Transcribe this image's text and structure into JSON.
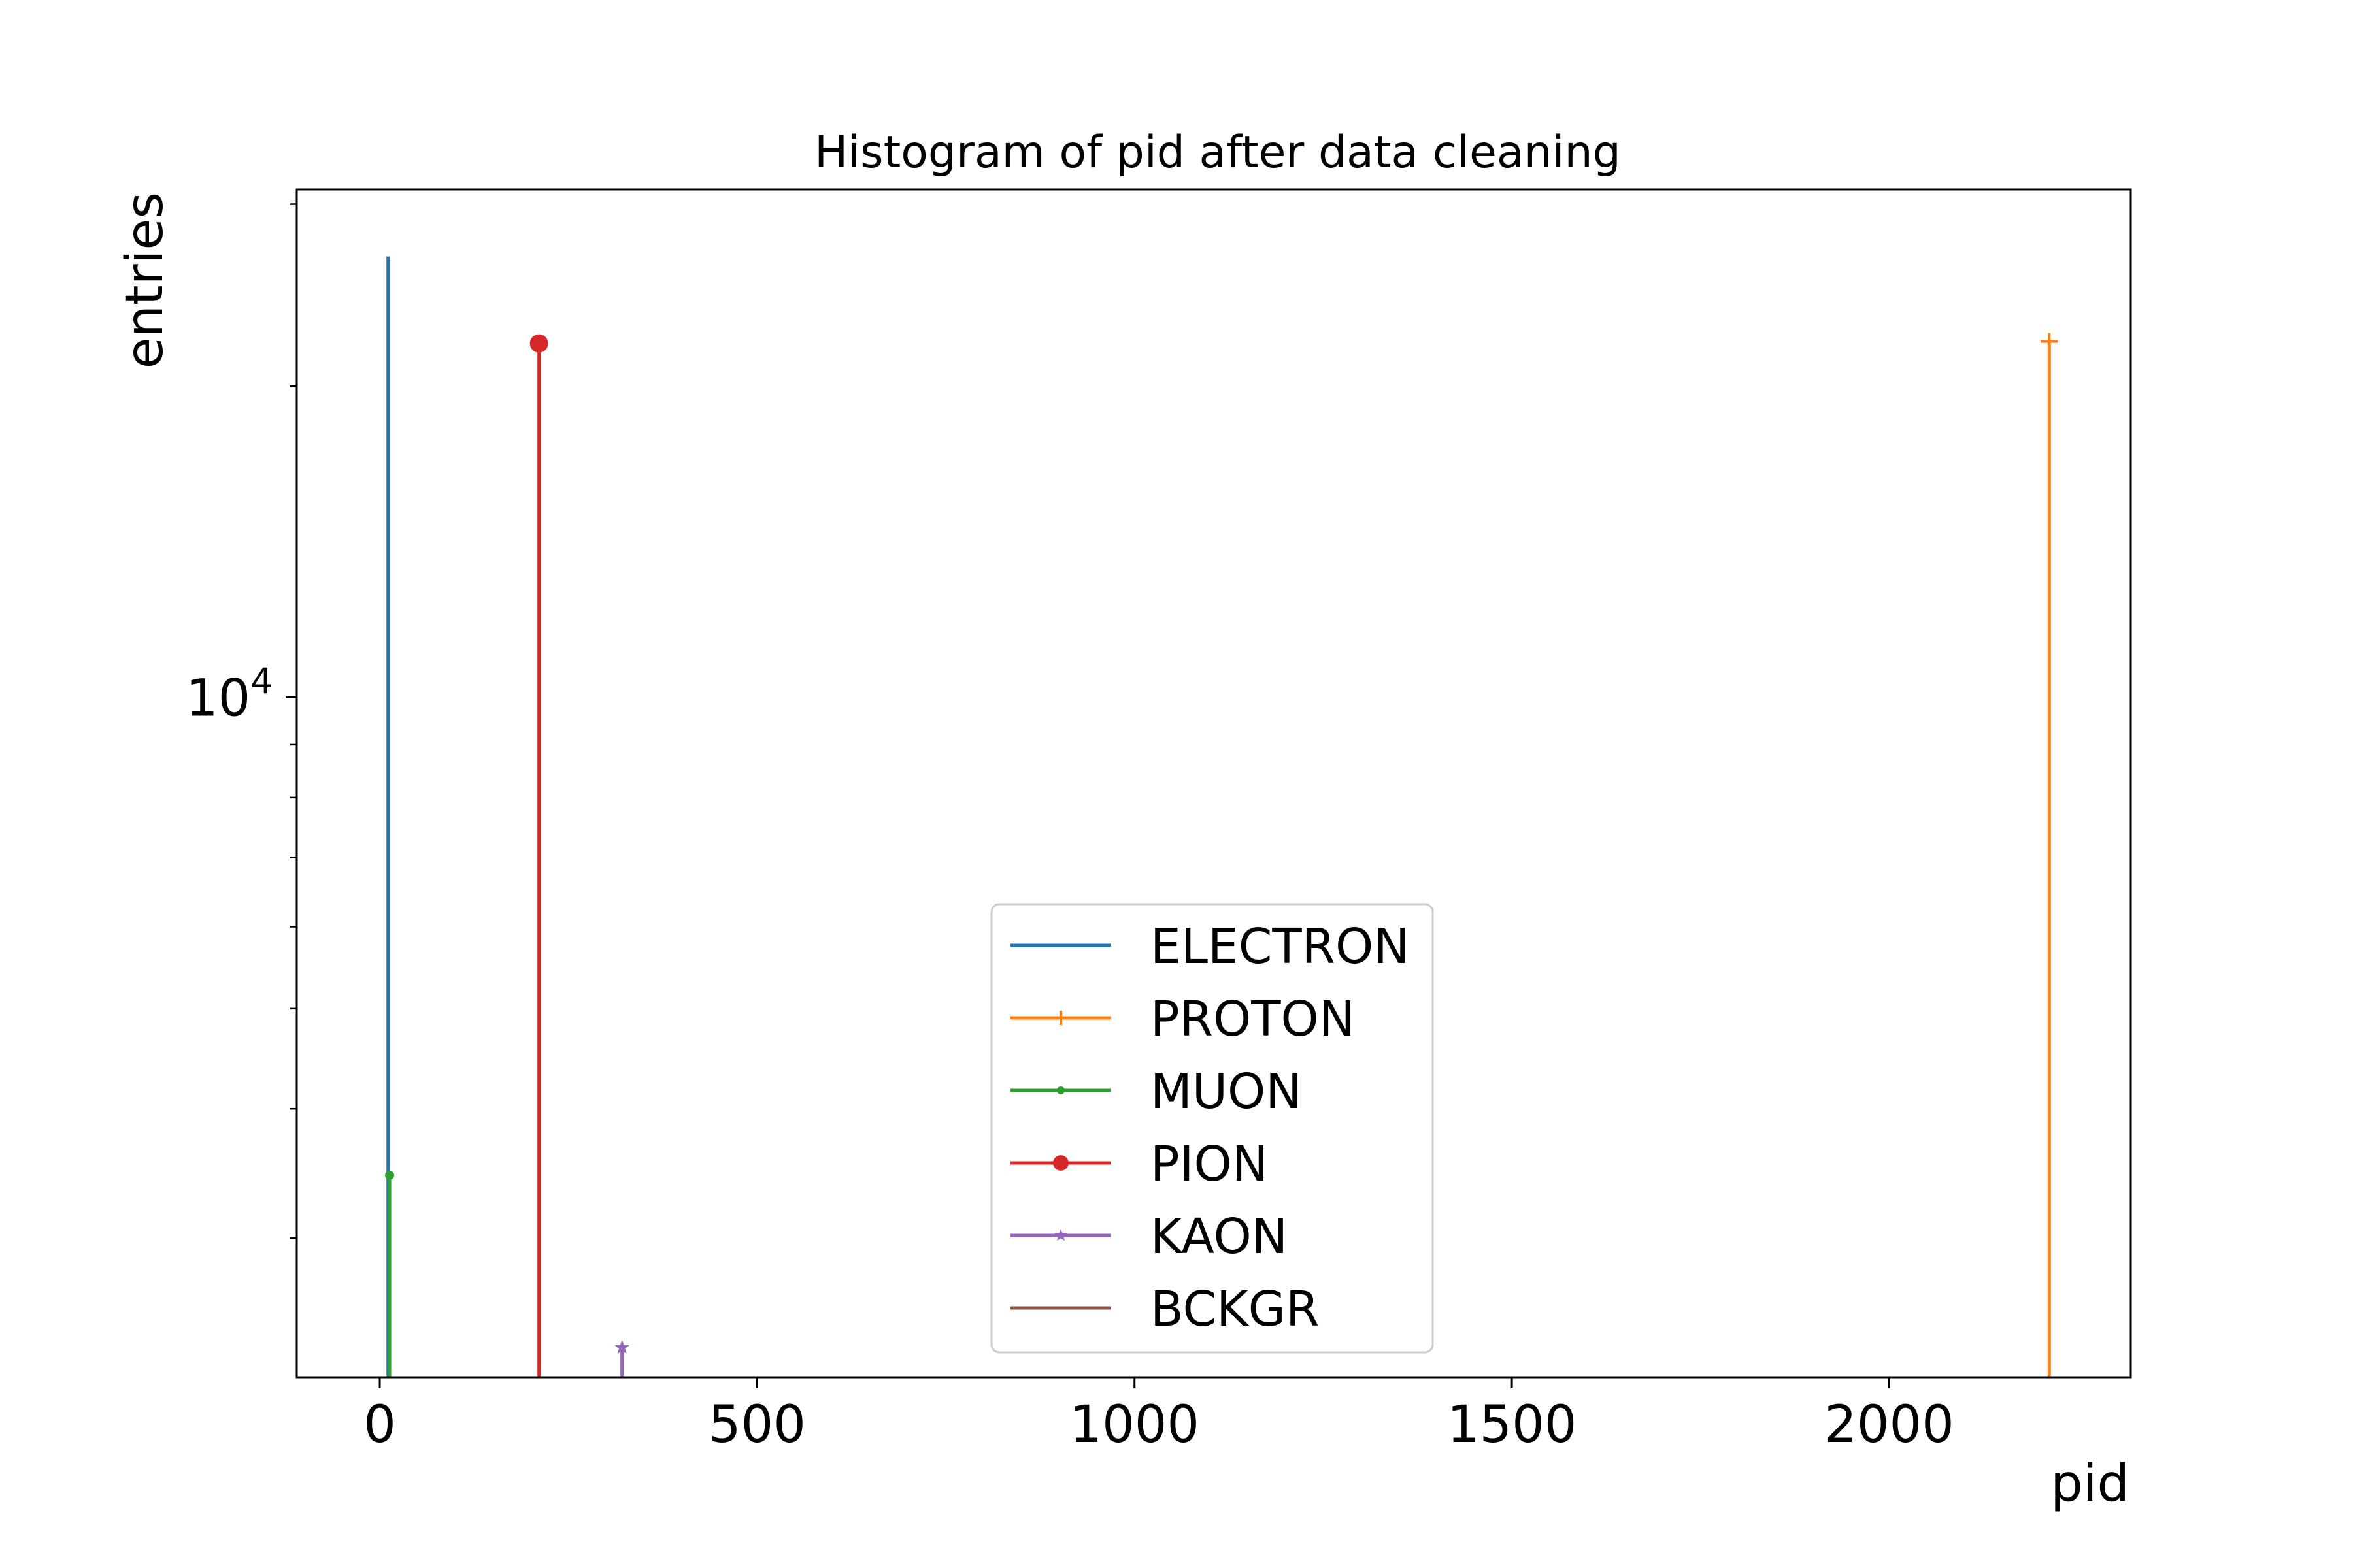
{
  "chart_data": {
    "type": "line",
    "title": "Histogram of pid after data cleaning",
    "xlabel": "pid",
    "ylabel": "entries",
    "xlim": [
      -110,
      2320
    ],
    "ylim": [
      2200,
      31000
    ],
    "yscale": "log",
    "x_ticks": [
      0,
      500,
      1000,
      1500,
      2000
    ],
    "x_tick_labels": [
      "0",
      "500",
      "1000",
      "1500",
      "2000"
    ],
    "y_major_ticks": [
      10000
    ],
    "y_major_tick_label": {
      "base": "10",
      "exponent": "4"
    },
    "y_minor_ticks": [
      3000,
      4000,
      5000,
      6000,
      7000,
      8000,
      9000,
      20000,
      30000
    ],
    "grid": false,
    "legend_position": "lower-center",
    "series": [
      {
        "name": "ELECTRON",
        "x": 11,
        "value": 26700,
        "color": "#1f77b4",
        "marker": "none"
      },
      {
        "name": "PROTON",
        "x": 2212,
        "value": 22100,
        "color": "#ff7f0e",
        "marker": "plus"
      },
      {
        "name": "MUON",
        "x": 13,
        "value": 3450,
        "color": "#2ca02c",
        "marker": "point"
      },
      {
        "name": "PION",
        "x": 211,
        "value": 22000,
        "color": "#d62728",
        "marker": "circle"
      },
      {
        "name": "KAON",
        "x": 321,
        "value": 2350,
        "color": "#9467bd",
        "marker": "star"
      },
      {
        "name": "BCKGR",
        "x": null,
        "value": null,
        "color": "#8c564b",
        "marker": "none"
      }
    ]
  }
}
